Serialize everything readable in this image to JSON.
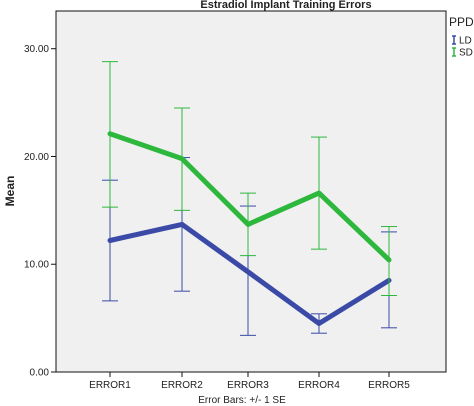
{
  "chart_data": {
    "type": "line",
    "title": "Estradiol Implant Training Errors",
    "xlabel": "Error Bars: +/- 1 SE",
    "ylabel": "Mean",
    "categories": [
      "ERROR1",
      "ERROR2",
      "ERROR3",
      "ERROR4",
      "ERROR5"
    ],
    "ylim": [
      0,
      33.5
    ],
    "yticks": [
      0,
      10,
      20,
      30
    ],
    "ytick_labels": [
      "0.00",
      "10.00",
      "20.00",
      "30.00"
    ],
    "grid": false,
    "legend": {
      "title": "PPD",
      "placement": "right"
    },
    "series": [
      {
        "name": "LD",
        "color": "#3a4aa6",
        "values": [
          12.2,
          13.7,
          9.3,
          4.5,
          8.5
        ],
        "error_low": [
          6.6,
          7.5,
          3.4,
          3.6,
          4.1
        ],
        "error_high": [
          17.8,
          19.9,
          15.4,
          5.4,
          13.0
        ]
      },
      {
        "name": "SD",
        "color": "#2db83d",
        "values": [
          22.1,
          19.8,
          13.7,
          16.6,
          10.4
        ],
        "error_low": [
          15.3,
          15.0,
          10.8,
          11.4,
          7.1
        ],
        "error_high": [
          28.8,
          24.5,
          16.6,
          21.8,
          13.5
        ]
      }
    ]
  }
}
